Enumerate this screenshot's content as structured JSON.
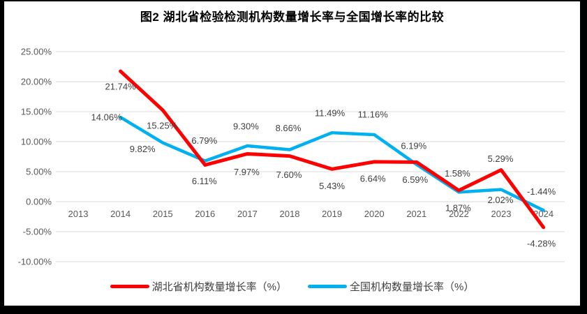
{
  "title": "图2  湖北省检验检测机构数量增长率与全国增长率的比较",
  "chart_data": {
    "type": "line",
    "categories": [
      "2013",
      "2014",
      "2015",
      "2016",
      "2017",
      "2018",
      "2019",
      "2020",
      "2021",
      "2022",
      "2023",
      "2024"
    ],
    "series": [
      {
        "name": "湖北省机构数量增长率（%）",
        "color": "#FF0000",
        "values": [
          null,
          21.74,
          15.25,
          6.11,
          7.97,
          7.6,
          5.43,
          6.64,
          6.59,
          1.87,
          5.29,
          -4.28
        ]
      },
      {
        "name": "全国机构数量增长率（%）",
        "color": "#00B0F0",
        "values": [
          null,
          14.06,
          9.82,
          6.79,
          9.3,
          8.66,
          11.49,
          11.16,
          6.19,
          1.58,
          2.02,
          -1.44
        ]
      }
    ],
    "title": "图2  湖北省检验检测机构数量增长率与全国增长率的比较",
    "xlabel": "",
    "ylabel": "",
    "ylim": [
      -10,
      25
    ],
    "ytick_step": 5,
    "ytick_labels": [
      "25.00%",
      "20.00%",
      "15.00%",
      "10.00%",
      "5.00%",
      "0.00%",
      "-5.00%",
      "-10.00%"
    ],
    "grid": true,
    "legend_position": "bottom",
    "data_label_format": "0.00%"
  },
  "colors": {
    "hubei_line": "#FF0000",
    "national_line": "#00B0F0",
    "gridline": "#D9D9D9",
    "axis_text": "#595959",
    "data_label_text": "#404040",
    "frame": "#000000",
    "background": "#FFFFFF"
  }
}
